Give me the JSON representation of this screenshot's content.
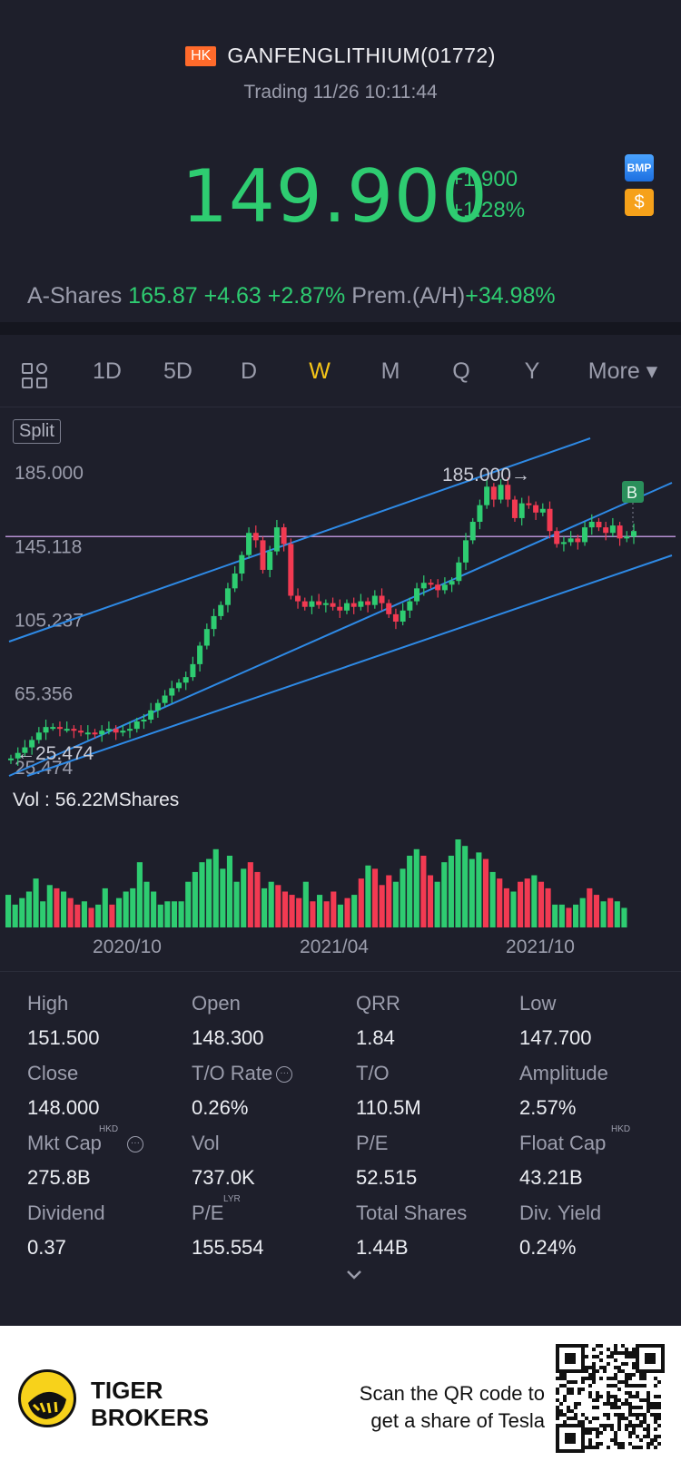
{
  "header": {
    "market_badge": "HK",
    "stock_name": "GANFENGLITHIUM(01772)",
    "status": "Trading 11/26 10:11:44",
    "price": "149.900",
    "change": "+1.900",
    "change_pct": "+1.28%",
    "bmp_label": "BMP",
    "dollar_label": "$",
    "ashares_label": "A-Shares",
    "ashares_value": "165.87 +4.63 +2.87%",
    "premium_label": "Prem.(A/H)",
    "premium_value": "+34.98%"
  },
  "tabs": {
    "items": [
      "1D",
      "5D",
      "D",
      "W",
      "M",
      "Q",
      "Y"
    ],
    "active": "W",
    "more": "More"
  },
  "chart": {
    "split_label": "Split",
    "y_labels": [
      "185.000",
      "145.118",
      "105.237",
      "65.356",
      "25.474"
    ],
    "high_marker": "185.000",
    "low_marker": "25.474",
    "b_marker": "B",
    "vol_label": "Vol  : 56.22MShares",
    "x_labels": [
      "2020/10",
      "2021/04",
      "2021/10"
    ]
  },
  "chart_data": {
    "type": "candlestick",
    "ylim": [
      25.474,
      185.0
    ],
    "y_ticks": [
      185.0,
      145.118,
      105.237,
      65.356,
      25.474
    ],
    "x_ticks": [
      "2020/10",
      "2021/04",
      "2021/10"
    ],
    "close_series": [
      30,
      33,
      36,
      40,
      44,
      47,
      47,
      46,
      46,
      45,
      44,
      44,
      43,
      45,
      46,
      44,
      45,
      46,
      50,
      51,
      56,
      60,
      64,
      68,
      71,
      74,
      81,
      91,
      100,
      107,
      113,
      122,
      130,
      140,
      152,
      148,
      132,
      142,
      155,
      146,
      118,
      115,
      112,
      115,
      113,
      114,
      112,
      110,
      114,
      112,
      115,
      113,
      118,
      114,
      108,
      104,
      110,
      115,
      122,
      125,
      124,
      121,
      124,
      126,
      136,
      148,
      158,
      167,
      177,
      170,
      178,
      170,
      160,
      168,
      167,
      163,
      165,
      153,
      146,
      147,
      149,
      147,
      155,
      158,
      155,
      152,
      156,
      149,
      150,
      153
    ],
    "volume_series": [
      10,
      7,
      9,
      11,
      15,
      8,
      13,
      12,
      11,
      9,
      7,
      8,
      6,
      7,
      12,
      7,
      9,
      11,
      12,
      20,
      14,
      11,
      7,
      8,
      8,
      8,
      14,
      17,
      20,
      21,
      24,
      18,
      22,
      14,
      18,
      20,
      17,
      12,
      14,
      13,
      11,
      10,
      9,
      14,
      8,
      10,
      8,
      11,
      7,
      9,
      10,
      15,
      19,
      18,
      13,
      16,
      14,
      18,
      22,
      24,
      22,
      16,
      14,
      20,
      22,
      27,
      25,
      21,
      23,
      21,
      17,
      15,
      12,
      11,
      14,
      15,
      16,
      14,
      12,
      7,
      7,
      6,
      7,
      9,
      12,
      10,
      8,
      9,
      8,
      6
    ],
    "reference_line": 150.0,
    "volume_unit": "MShares"
  },
  "stats": [
    {
      "k": "High",
      "v": "151.500"
    },
    {
      "k": "Open",
      "v": "148.300"
    },
    {
      "k": "QRR",
      "v": "1.84"
    },
    {
      "k": "Low",
      "v": "147.700"
    },
    {
      "k": "Close",
      "v": "148.000"
    },
    {
      "k": "T/O Rate",
      "v": "0.26%"
    },
    {
      "k": "T/O",
      "v": "110.5M"
    },
    {
      "k": "Amplitude",
      "v": "2.57%"
    },
    {
      "k": "Mkt Cap",
      "v": "275.8B",
      "sup": "HKD"
    },
    {
      "k": "Vol",
      "v": "737.0K"
    },
    {
      "k": "P/E",
      "v": "52.515"
    },
    {
      "k": "Float Cap",
      "v": "43.21B",
      "sup": "HKD"
    },
    {
      "k": "Dividend",
      "v": "0.37"
    },
    {
      "k": "P/E",
      "v": "155.554",
      "sup": "LYR"
    },
    {
      "k": "Total Shares",
      "v": "1.44B"
    },
    {
      "k": "Div. Yield",
      "v": "0.24%"
    }
  ],
  "footer": {
    "brand_line1": "TIGER",
    "brand_line2": "BROKERS",
    "scan_line1": "Scan the QR code to",
    "scan_line2": "get a share of Tesla"
  },
  "colors": {
    "up": "#2ecc71",
    "down": "#f23a52",
    "accent": "#f5c518",
    "trend": "#2e8ae6",
    "ref_line": "#b58fd1"
  }
}
